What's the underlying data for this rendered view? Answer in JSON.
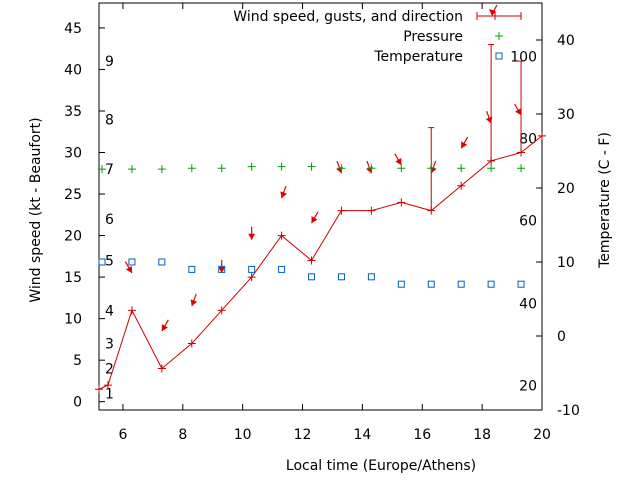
{
  "chart_data": {
    "type": "line",
    "xlabel": "Local time (Europe/Athens)",
    "ylabel": "Wind speed (kt - Beaufort)",
    "y2label": "Temperature (C - F)",
    "xlim": [
      5.2,
      20
    ],
    "ylim": [
      -1,
      48
    ],
    "y2lim": [
      -10,
      45
    ],
    "x_ticks": [
      6,
      8,
      10,
      12,
      14,
      16,
      18,
      20
    ],
    "y_ticks": [
      0,
      5,
      10,
      15,
      20,
      25,
      30,
      35,
      40,
      45
    ],
    "y2_ticks": [
      -10,
      0,
      10,
      20,
      30,
      40
    ],
    "beaufort_labels": [
      {
        "label": "1",
        "kt": 1
      },
      {
        "label": "2",
        "kt": 4
      },
      {
        "label": "3",
        "kt": 7
      },
      {
        "label": "4",
        "kt": 11
      },
      {
        "label": "5",
        "kt": 17
      },
      {
        "label": "6",
        "kt": 22
      },
      {
        "label": "7",
        "kt": 28
      },
      {
        "label": "8",
        "kt": 34
      },
      {
        "label": "9",
        "kt": 41
      }
    ],
    "fahrenheit_labels": [
      {
        "label": "20",
        "celsius": -6.7
      },
      {
        "label": "40",
        "celsius": 4.4
      },
      {
        "label": "60",
        "celsius": 15.6
      },
      {
        "label": "80",
        "celsius": 26.7
      },
      {
        "label": "100",
        "celsius": 37.8
      }
    ],
    "legend_position": "top-right",
    "series": [
      {
        "name": "Wind speed, gusts, and direction",
        "color": "#cc0000",
        "x": [
          5.2,
          5.5,
          6.3,
          7.3,
          8.3,
          9.3,
          10.3,
          11.3,
          12.3,
          13.3,
          14.3,
          15.3,
          16.3,
          17.3,
          18.3,
          19.3,
          20
        ],
        "values": [
          1.5,
          2,
          11,
          4,
          7,
          11,
          15,
          20,
          17,
          23,
          23,
          24,
          23,
          26,
          29,
          30,
          32
        ],
        "gusts": [
          null,
          null,
          null,
          null,
          null,
          null,
          null,
          null,
          null,
          null,
          null,
          null,
          33,
          null,
          43,
          41,
          null
        ],
        "direction_deg": [
          null,
          null,
          330,
          30,
          20,
          0,
          0,
          20,
          30,
          340,
          340,
          330,
          20,
          30,
          340,
          330,
          null
        ]
      },
      {
        "name": "Pressure",
        "color": "#00a000",
        "x": [
          5.3,
          6.3,
          7.3,
          8.3,
          9.3,
          10.3,
          11.3,
          12.3,
          13.3,
          14.3,
          15.3,
          16.3,
          17.3,
          18.3,
          19.3
        ],
        "values": [
          28,
          28,
          28,
          28.1,
          28.1,
          28.3,
          28.3,
          28.3,
          28.1,
          28.1,
          28.1,
          28.1,
          28.1,
          28.1,
          28.1
        ]
      },
      {
        "name": "Temperature",
        "color": "#0060c0",
        "x": [
          5.3,
          6.3,
          7.3,
          8.3,
          9.3,
          10.3,
          11.3,
          12.3,
          13.3,
          14.3,
          15.3,
          16.3,
          17.3,
          18.3,
          19.3
        ],
        "values": [
          10,
          10,
          10,
          9,
          9,
          9,
          9,
          8,
          8,
          8,
          7,
          7,
          7,
          7,
          7
        ]
      }
    ]
  }
}
